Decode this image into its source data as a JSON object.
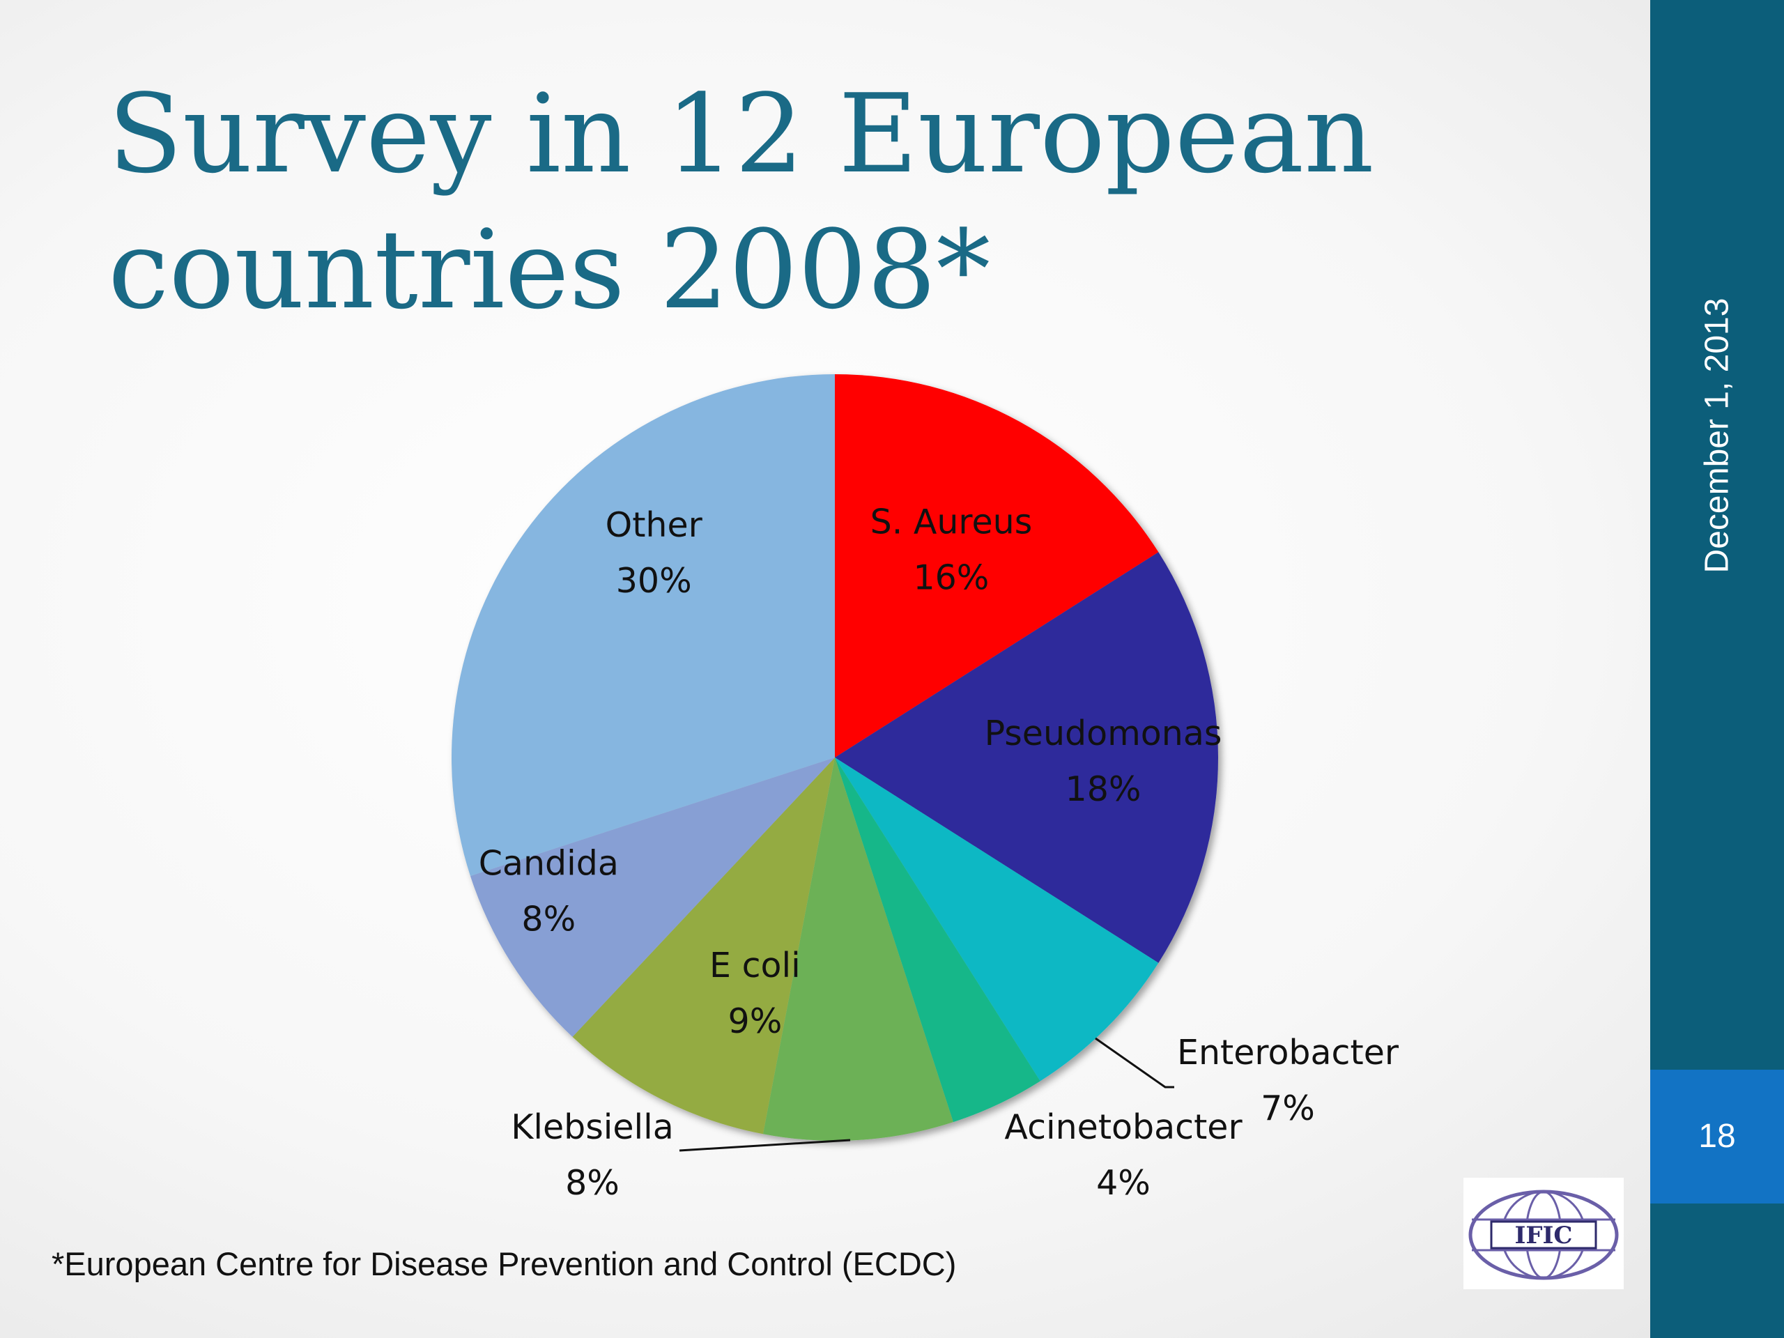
{
  "slide": {
    "title_line1": "Survey in 12 European",
    "title_line2": "countries 2008*",
    "date": "December 1, 2013",
    "page_number": "18",
    "footnote": "*European Centre for Disease Prevention and Control (ECDC)",
    "logo_text": "IFIC",
    "colors": {
      "title": "#1a6a86",
      "sidebar": "#0c5e7a",
      "page_box": "#1273c4"
    }
  },
  "chart_data": {
    "type": "pie",
    "start_angle_deg": 0,
    "direction": "clockwise",
    "slices": [
      {
        "label": "S. Aureus",
        "value": 16,
        "display": "16%",
        "color": "#ff0000"
      },
      {
        "label": "Pseudomonas",
        "value": 18,
        "display": "18%",
        "color": "#2e2a9b"
      },
      {
        "label": "Enterobacter",
        "value": 7,
        "display": "7%",
        "color": "#0ab8c4"
      },
      {
        "label": "Acinetobacter",
        "value": 4,
        "display": "4%",
        "color": "#12b789"
      },
      {
        "label": "Klebsiella",
        "value": 8,
        "display": "8%",
        "color": "#6cb156"
      },
      {
        "label": "E coli",
        "value": 9,
        "display": "9%",
        "color": "#94ab42"
      },
      {
        "label": "Candida",
        "value": 8,
        "display": "8%",
        "color": "#879fd4"
      },
      {
        "label": "Other",
        "value": 30,
        "display": "30%",
        "color": "#86b6e0"
      }
    ]
  }
}
